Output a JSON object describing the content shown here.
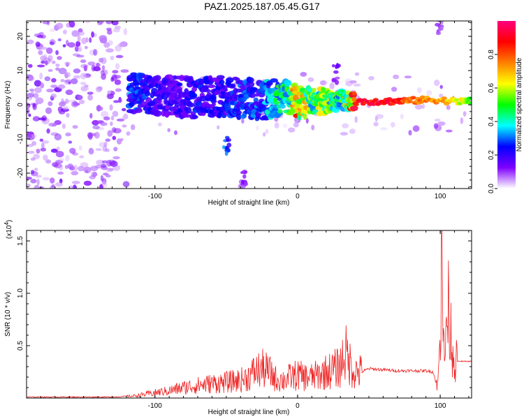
{
  "title": "PAZ1.2025.187.05.45.G17",
  "chart_data": [
    {
      "type": "heatmap",
      "xlabel": "Height of straight line (km)",
      "ylabel": "Frequency (Hz)",
      "xlim": [
        -190,
        122
      ],
      "ylim": [
        -24.5,
        24.5
      ],
      "xticks": [
        -100,
        0,
        100
      ],
      "xtick_labels": [
        "-100",
        "0",
        "100"
      ],
      "yticks": [
        -20,
        -10,
        0,
        10,
        20
      ],
      "ytick_labels": [
        "-20",
        "-10",
        "0",
        "10",
        "20"
      ],
      "colorbar": {
        "label": "Normalized spectral amplitude",
        "range": [
          0,
          1
        ],
        "ticks": [
          0.0,
          0.2,
          0.4,
          0.6,
          0.8
        ],
        "tick_labels": [
          "0.0",
          "0.2",
          "0.4",
          "0.6",
          "0.8"
        ],
        "colormap": [
          "#ffffff",
          "#7f00ff",
          "#0000ff",
          "#00ffff",
          "#00ff00",
          "#ffff00",
          "#ff8000",
          "#ff0000",
          "#ff0080"
        ]
      },
      "ridge": [
        {
          "x": -115,
          "f": 3.5,
          "a": 0.3
        },
        {
          "x": -100,
          "f": 3.0,
          "a": 0.22
        },
        {
          "x": -85,
          "f": 2.5,
          "a": 0.2
        },
        {
          "x": -70,
          "f": 2.0,
          "a": 0.25
        },
        {
          "x": -55,
          "f": 2.5,
          "a": 0.22
        },
        {
          "x": -40,
          "f": 2.0,
          "a": 0.28
        },
        {
          "x": -25,
          "f": 1.5,
          "a": 0.3
        },
        {
          "x": -15,
          "f": 2.0,
          "a": 0.45
        },
        {
          "x": -5,
          "f": 1.8,
          "a": 0.55
        },
        {
          "x": 0,
          "f": 0.5,
          "a": 0.8
        },
        {
          "x": 10,
          "f": 1.0,
          "a": 0.55
        },
        {
          "x": 20,
          "f": 1.0,
          "a": 0.6
        },
        {
          "x": 30,
          "f": 1.2,
          "a": 0.45
        },
        {
          "x": 40,
          "f": 1.0,
          "a": 0.9
        },
        {
          "x": 60,
          "f": 1.0,
          "a": 0.95
        },
        {
          "x": 80,
          "f": 1.2,
          "a": 0.8
        },
        {
          "x": 95,
          "f": 1.5,
          "a": 0.75
        },
        {
          "x": 110,
          "f": 1.0,
          "a": 0.7
        },
        {
          "x": 122,
          "f": 1.0,
          "a": 0.55
        }
      ],
      "branches": [
        {
          "x": -50,
          "f": -12.0,
          "a": 0.3
        },
        {
          "x": -38,
          "f": -22.0,
          "a": 0.12
        },
        {
          "x": 27,
          "f": 9.0,
          "a": 0.15
        },
        {
          "x": 100,
          "f": 23.0,
          "a": 0.1
        }
      ]
    },
    {
      "type": "line",
      "xlabel": "Height of straight line (km)",
      "ylabel": "SNR (10 * v/v)",
      "y_multiplier": "(x10",
      "y_multiplier_exp": "4",
      "y_multiplier_close": ")",
      "xlim": [
        -190,
        122
      ],
      "ylim": [
        0,
        1.6
      ],
      "xticks": [
        -100,
        0,
        100
      ],
      "xtick_labels": [
        "-100",
        "0",
        "100"
      ],
      "yticks": [
        0.5,
        1.0,
        1.5
      ],
      "ytick_labels": [
        "0.5",
        "1.0",
        "1.5"
      ],
      "color": "#ee2222",
      "x": [
        -190,
        -160,
        -130,
        -115,
        -100,
        -90,
        -80,
        -70,
        -60,
        -50,
        -40,
        -35,
        -30,
        -25,
        -20,
        -15,
        -10,
        -5,
        0,
        5,
        10,
        15,
        20,
        25,
        30,
        33,
        35,
        40,
        45,
        50,
        60,
        70,
        80,
        90,
        95,
        98,
        100,
        101,
        102,
        103,
        104,
        106,
        108,
        110,
        115,
        122
      ],
      "y": [
        0.01,
        0.01,
        0.01,
        0.02,
        0.05,
        0.07,
        0.1,
        0.12,
        0.14,
        0.15,
        0.17,
        0.2,
        0.25,
        0.28,
        0.25,
        0.18,
        0.17,
        0.2,
        0.22,
        0.2,
        0.2,
        0.22,
        0.25,
        0.27,
        0.3,
        0.45,
        0.38,
        0.25,
        0.25,
        0.28,
        0.27,
        0.26,
        0.26,
        0.26,
        0.25,
        0.1,
        0.5,
        1.6,
        0.9,
        0.2,
        0.7,
        0.85,
        0.55,
        0.35,
        0.35,
        0.35
      ]
    }
  ]
}
